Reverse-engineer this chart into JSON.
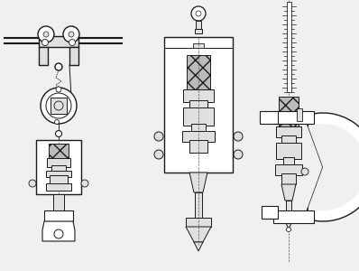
{
  "background_color": "#f0f0f0",
  "line_color": "#1a1a1a",
  "light_fill": "#e0e0e0",
  "white_fill": "#ffffff",
  "figsize": [
    3.98,
    3.0
  ],
  "dpi": 100
}
